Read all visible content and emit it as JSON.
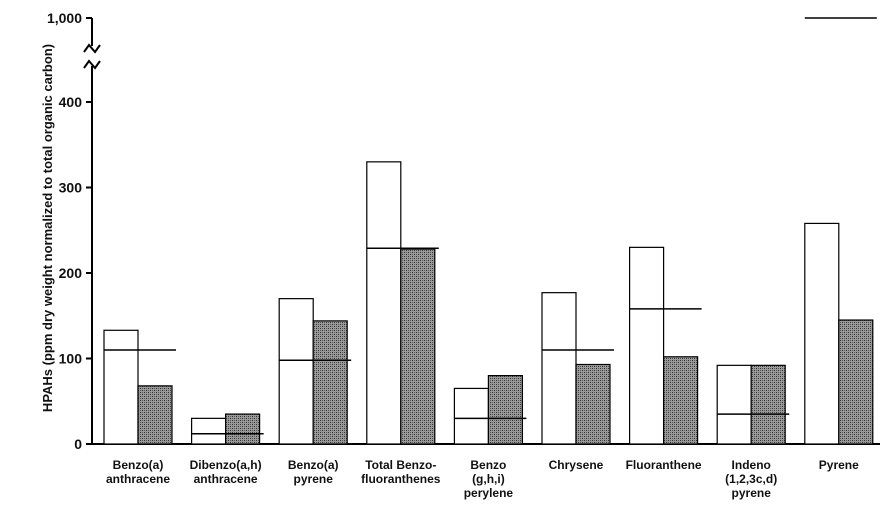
{
  "chart_data": {
    "type": "bar",
    "ylabel": "HPAHs (ppm dry weight normalized to total organic carbon)",
    "yticks": [
      "0",
      "100",
      "200",
      "300",
      "400",
      "1,000"
    ],
    "y_break": "400 to 1,000",
    "ylim": [
      0,
      1000
    ],
    "grid": false,
    "categories": [
      [
        "Benzo(a)",
        "anthracene"
      ],
      [
        "Dibenzo(a,h)",
        "anthracene"
      ],
      [
        "Benzo(a)",
        "pyrene"
      ],
      [
        "Total Benzo-",
        "fluoranthenes"
      ],
      [
        "Benzo",
        "(g,h,i)",
        "perylene"
      ],
      [
        "Chrysene"
      ],
      [
        "Fluoranthene"
      ],
      [
        "Indeno",
        "(1,2,3c,d)",
        "pyrene"
      ],
      [
        "Pyrene"
      ]
    ],
    "series": [
      {
        "values": [
          133,
          30,
          170,
          330,
          65,
          177,
          230,
          92,
          258
        ],
        "color": "#ffffff"
      },
      {
        "values": [
          68,
          35,
          144,
          228,
          80,
          93,
          102,
          92,
          145
        ],
        "color": "#8a8a8a"
      }
    ],
    "reference_lines": [
      110,
      12,
      98,
      229,
      30,
      110,
      158,
      35,
      1000
    ]
  }
}
